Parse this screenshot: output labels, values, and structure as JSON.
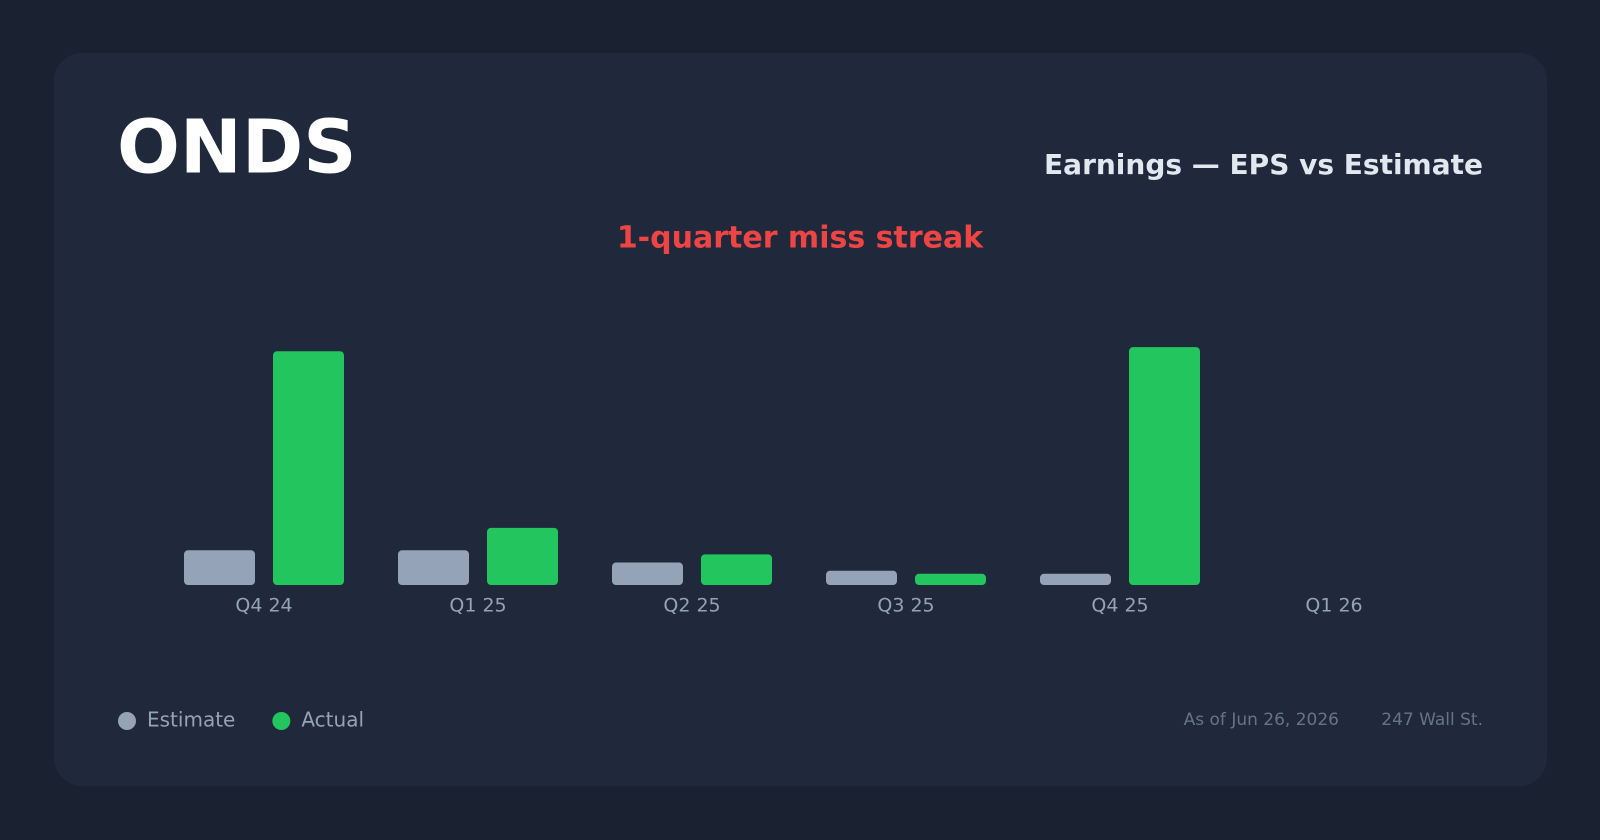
{
  "chart_data": {
    "type": "bar",
    "title": "ONDS",
    "subtitle": "Earnings — EPS vs Estimate",
    "annotation": "1-quarter miss streak",
    "categories": [
      "Q4 24",
      "Q1 25",
      "Q2 25",
      "Q3 25",
      "Q4 25",
      "Q1 26"
    ],
    "series": [
      {
        "name": "Estimate",
        "color": "#94a3b8",
        "values": [
          34,
          34,
          22,
          14,
          11,
          null
        ]
      },
      {
        "name": "Actual",
        "color": "#22c55e",
        "values": [
          229,
          56,
          30,
          11,
          233,
          null
        ]
      }
    ],
    "ylim": [
      0,
      240
    ],
    "footer": {
      "date": "As of Jun 26, 2026",
      "source": "247 Wall St."
    }
  }
}
